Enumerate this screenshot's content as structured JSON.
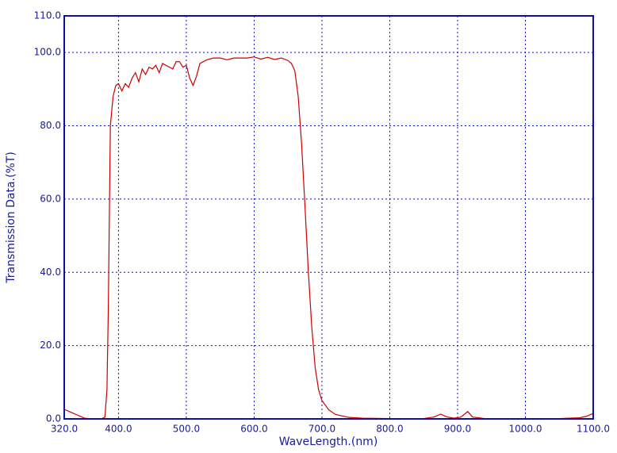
{
  "chart_data": {
    "type": "line",
    "xlabel": "WaveLength.(nm)",
    "ylabel": "Transmission Data.(%T)",
    "x": [
      320,
      330,
      340,
      350,
      360,
      375,
      380,
      383,
      385,
      388,
      392,
      396,
      400,
      405,
      410,
      415,
      420,
      425,
      430,
      435,
      440,
      445,
      450,
      455,
      460,
      465,
      470,
      475,
      480,
      485,
      490,
      495,
      500,
      505,
      510,
      515,
      520,
      530,
      540,
      550,
      560,
      570,
      580,
      590,
      600,
      610,
      620,
      630,
      640,
      650,
      655,
      660,
      665,
      670,
      675,
      680,
      685,
      690,
      695,
      700,
      710,
      720,
      740,
      760,
      800,
      850,
      865,
      875,
      885,
      895,
      905,
      915,
      922,
      940,
      1000,
      1050,
      1080,
      1090,
      1100
    ],
    "series": [
      {
        "name": "Transmission",
        "color": "#cc0000",
        "values": [
          2.6,
          1.8,
          1,
          0.2,
          0,
          0,
          0.5,
          8,
          30,
          80,
          88,
          91,
          91.5,
          89.5,
          91.5,
          90.5,
          93,
          94.5,
          92,
          95.5,
          94,
          96,
          95.5,
          96.5,
          94.5,
          97,
          96.5,
          96,
          95.5,
          97.5,
          97.5,
          96,
          96.5,
          93,
          91,
          93.5,
          97,
          98,
          98.5,
          98.5,
          98,
          98.5,
          98.5,
          98.5,
          98.8,
          98.2,
          98.7,
          98.1,
          98.5,
          97.8,
          97,
          95,
          88,
          75,
          58,
          40,
          25,
          14,
          8,
          5,
          2.5,
          1.2,
          0.4,
          0.2,
          0.1,
          0.1,
          0.5,
          1.3,
          0.5,
          0.2,
          0.5,
          2,
          0.5,
          0.1,
          0.1,
          0.1,
          0.3,
          0.7,
          1.5
        ]
      }
    ],
    "xlim": [
      320,
      1100
    ],
    "ylim": [
      0,
      110
    ],
    "xticks": [
      {
        "value": 320,
        "label": "320.0"
      },
      {
        "value": 400,
        "label": "400.0"
      },
      {
        "value": 500,
        "label": "500.0"
      },
      {
        "value": 600,
        "label": "600.0"
      },
      {
        "value": 700,
        "label": "700.0"
      },
      {
        "value": 800,
        "label": "800.0"
      },
      {
        "value": 900,
        "label": "900.0"
      },
      {
        "value": 1000,
        "label": "1000.0"
      },
      {
        "value": 1100,
        "label": "1100.0"
      }
    ],
    "yticks": [
      {
        "value": 0,
        "label": "0.0"
      },
      {
        "value": 20,
        "label": "20.0"
      },
      {
        "value": 40,
        "label": "40.0"
      },
      {
        "value": 60,
        "label": "60.0"
      },
      {
        "value": 80,
        "label": "80.0"
      },
      {
        "value": 100,
        "label": "100.0"
      },
      {
        "value": 110,
        "label": "110.0"
      }
    ],
    "grid": true
  }
}
